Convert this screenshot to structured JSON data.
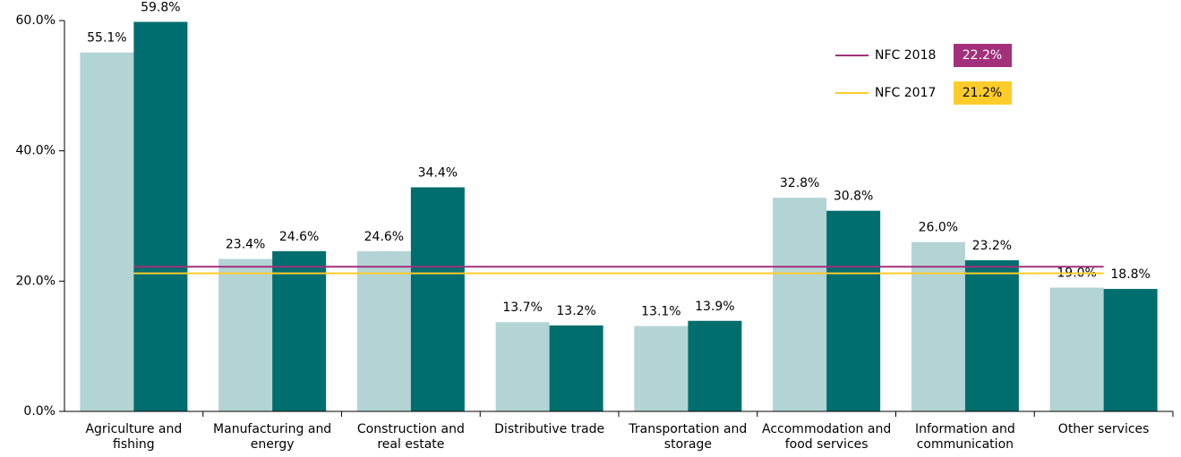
{
  "chart_data": {
    "type": "bar",
    "categories": [
      "Agriculture and fishing",
      "Manufacturing and energy",
      "Construction and real estate",
      "Distributive trade",
      "Transportation and storage",
      "Accommodation and food services",
      "Information and communication",
      "Other services"
    ],
    "series": [
      {
        "color": "#b3d4d4",
        "values": [
          55.1,
          23.4,
          24.6,
          13.7,
          13.1,
          32.8,
          26.0,
          19.0
        ],
        "value_labels": [
          "55.1%",
          "23.4%",
          "24.6%",
          "13.7%",
          "13.1%",
          "32.8%",
          "26.0%",
          "19.0%"
        ]
      },
      {
        "color": "#006e6e",
        "values": [
          59.8,
          24.6,
          34.4,
          13.2,
          13.9,
          30.8,
          23.2,
          18.8
        ],
        "value_labels": [
          "59.8%",
          "24.6%",
          "34.4%",
          "13.2%",
          "13.9%",
          "30.8%",
          "23.2%",
          "18.8%"
        ]
      }
    ],
    "reference_lines": [
      {
        "name": "NFC 2018",
        "value": 22.2,
        "label": "22.2%",
        "color": "#a3307a",
        "label_color": "#ffffff"
      },
      {
        "name": "NFC 2017",
        "value": 21.2,
        "label": "21.2%",
        "color": "#ffcc29",
        "label_color": "#000000"
      }
    ],
    "ylim": [
      0,
      60
    ],
    "yticks": [
      {
        "value": 0,
        "label": "0.0%"
      },
      {
        "value": 20,
        "label": "20.0%"
      },
      {
        "value": 40,
        "label": "40.0%"
      },
      {
        "value": 60,
        "label": "60.0%"
      }
    ]
  }
}
